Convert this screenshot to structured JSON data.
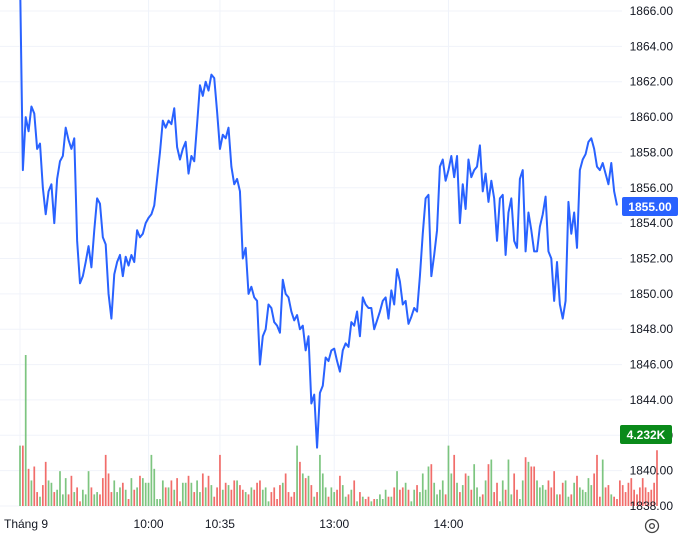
{
  "chart_data": {
    "type": "line",
    "y_axis": {
      "side": "right",
      "min": 1838,
      "max": 1866,
      "ticks": [
        1838,
        1840,
        1842,
        1844,
        1846,
        1848,
        1850,
        1852,
        1854,
        1856,
        1858,
        1860,
        1862,
        1864,
        1866
      ],
      "tick_labels": [
        "1838.00",
        "1840.00",
        "1842.00",
        "1844.00",
        "1846.00",
        "1848.00",
        "1850.00",
        "1852.00",
        "1854.00",
        "1856.00",
        "1858.00",
        "1860.00",
        "1862.00",
        "1864.00",
        "1866.00"
      ]
    },
    "x_axis": {
      "ticks": [
        {
          "label": "Tháng 9",
          "index": 0
        },
        {
          "label": "10:00",
          "index": 45
        },
        {
          "label": "10:35",
          "index": 70
        },
        {
          "label": "13:00",
          "index": 110
        },
        {
          "label": "14:00",
          "index": 150
        }
      ]
    },
    "grid": true,
    "series": [
      {
        "kind": "price",
        "color": "#2962ff",
        "values": [
          1868.0,
          1857.0,
          1860.0,
          1859.2,
          1860.6,
          1860.2,
          1858.2,
          1858.5,
          1856.0,
          1854.5,
          1855.8,
          1856.2,
          1854.0,
          1856.5,
          1857.5,
          1857.8,
          1859.4,
          1858.7,
          1858.2,
          1858.8,
          1853.0,
          1850.6,
          1851.0,
          1851.8,
          1852.7,
          1851.5,
          1853.6,
          1855.4,
          1855.1,
          1853.2,
          1852.8,
          1850.0,
          1848.6,
          1851.1,
          1851.8,
          1852.2,
          1851.0,
          1852.1,
          1851.6,
          1852.2,
          1851.8,
          1853.6,
          1853.2,
          1853.4,
          1854.0,
          1854.3,
          1854.5,
          1855.0,
          1856.5,
          1858.0,
          1859.8,
          1859.4,
          1859.8,
          1859.6,
          1860.5,
          1858.3,
          1857.6,
          1858.2,
          1858.6,
          1856.8,
          1857.8,
          1857.5,
          1859.6,
          1861.8,
          1861.2,
          1862.0,
          1861.5,
          1862.4,
          1862.2,
          1860.3,
          1858.2,
          1859.0,
          1858.8,
          1859.4,
          1857.2,
          1856.2,
          1856.5,
          1855.8,
          1852.0,
          1852.6,
          1850.0,
          1850.4,
          1849.8,
          1849.6,
          1846.0,
          1847.6,
          1848.0,
          1849.4,
          1849.2,
          1848.4,
          1848.2,
          1847.8,
          1850.8,
          1850.0,
          1849.8,
          1849.0,
          1848.5,
          1848.8,
          1848.0,
          1848.2,
          1846.8,
          1847.6,
          1843.8,
          1844.3,
          1841.3,
          1844.4,
          1844.8,
          1846.4,
          1846.2,
          1846.8,
          1846.9,
          1846.2,
          1845.6,
          1846.8,
          1847.2,
          1847.0,
          1848.4,
          1848.2,
          1849.0,
          1847.6,
          1849.8,
          1849.4,
          1849.2,
          1849.2,
          1848.0,
          1848.5,
          1849.0,
          1849.6,
          1849.8,
          1848.6,
          1850.2,
          1849.4,
          1851.4,
          1850.7,
          1849.4,
          1849.6,
          1848.3,
          1848.7,
          1849.2,
          1849.0,
          1851.0,
          1853.4,
          1855.4,
          1855.6,
          1851.0,
          1852.2,
          1853.6,
          1857.2,
          1857.6,
          1856.4,
          1857.0,
          1857.8,
          1856.6,
          1857.8,
          1854.0,
          1856.2,
          1854.8,
          1857.6,
          1856.6,
          1857.0,
          1857.2,
          1858.4,
          1855.8,
          1856.8,
          1855.2,
          1856.4,
          1855.4,
          1853.0,
          1855.4,
          1855.6,
          1852.2,
          1854.6,
          1855.4,
          1853.0,
          1852.6,
          1856.5,
          1857.0,
          1852.4,
          1854.6,
          1853.6,
          1852.4,
          1852.4,
          1853.8,
          1854.5,
          1855.5,
          1852.4,
          1852.0,
          1849.6,
          1851.8,
          1849.4,
          1848.6,
          1849.6,
          1855.2,
          1853.4,
          1854.6,
          1852.6,
          1857.0,
          1857.6,
          1857.9,
          1858.6,
          1858.8,
          1858.2,
          1857.2,
          1857.0,
          1857.4,
          1856.8,
          1856.2,
          1857.4,
          1855.8,
          1855.0
        ]
      },
      {
        "kind": "volume",
        "color_up": "#66bb6a",
        "color_down": "#ef5350",
        "scale_max": 6.5,
        "values": [
          2.6,
          2.6,
          6.5,
          1.6,
          1.1,
          1.7,
          0.6,
          0.4,
          0.9,
          1.9,
          1.1,
          1.0,
          0.6,
          0.7,
          1.5,
          0.5,
          1.2,
          0.5,
          1.3,
          0.6,
          0.8,
          0.2,
          0.7,
          0.5,
          1.5,
          0.8,
          0.5,
          0.6,
          0.5,
          1.2,
          2.2,
          1.4,
          0.6,
          1.1,
          0.6,
          0.8,
          1.0,
          0.7,
          0.3,
          1.2,
          0.7,
          0.8,
          1.3,
          1.2,
          1.0,
          1.0,
          2.2,
          1.6,
          0.3,
          0.3,
          1.1,
          0.8,
          0.8,
          1.1,
          0.7,
          1.2,
          0.2,
          1.0,
          1.0,
          1.3,
          1.0,
          0.6,
          1.1,
          0.6,
          1.4,
          0.8,
          1.3,
          0.9,
          0.4,
          0.8,
          2.2,
          0.7,
          1.0,
          0.9,
          0.7,
          1.1,
          1.1,
          0.9,
          0.7,
          0.6,
          0.5,
          0.8,
          0.7,
          1.0,
          1.1,
          0.7,
          0.8,
          0.2,
          0.6,
          0.8,
          0.3,
          0.9,
          1.0,
          1.4,
          0.6,
          0.4,
          0.6,
          2.6,
          1.9,
          1.4,
          1.2,
          1.3,
          0.9,
          0.4,
          0.6,
          2.2,
          1.4,
          0.8,
          0.4,
          0.8,
          0.6,
          0.7,
          1.3,
          0.9,
          0.4,
          0.5,
          0.7,
          1.1,
          0.2,
          0.6,
          0.4,
          0.3,
          0.4,
          0.2,
          0.3,
          0.3,
          0.5,
          0.3,
          0.7,
          0.4,
          0.4,
          0.8,
          1.5,
          0.7,
          0.8,
          1.0,
          0.7,
          0.2,
          0.7,
          0.9,
          0.6,
          1.4,
          0.7,
          1.7,
          1.8,
          1.0,
          0.5,
          0.7,
          1.1,
          0.5,
          2.6,
          1.4,
          2.2,
          1.0,
          0.6,
          0.9,
          1.4,
          1.3,
          0.7,
          1.8,
          0.8,
          0.4,
          0.5,
          1.1,
          1.8,
          2.0,
          0.6,
          1.0,
          0.2,
          1.1,
          0.7,
          2.0,
          0.5,
          1.4,
          0.7,
          0.3,
          1.1,
          2.1,
          1.9,
          1.7,
          1.7,
          1.1,
          0.8,
          0.9,
          0.7,
          1.1,
          0.8,
          1.5,
          0.5,
          0.5,
          1.0,
          1.1,
          0.4,
          0.5,
          1.0,
          1.3,
          0.8,
          0.7,
          0.6,
          1.2,
          0.9,
          1.4,
          2.2,
          0.4,
          2.0,
          0.8,
          0.9,
          0.5,
          0.4,
          0.3,
          1.1,
          0.9,
          0.6,
          1.0,
          1.2,
          0.7,
          0.5,
          0.8,
          1.2,
          0.8,
          0.6,
          0.7,
          1.0,
          2.4
        ]
      }
    ],
    "last_price_label": "1855.00",
    "last_price_color": "#2962ff",
    "last_volume_label": "4.232K",
    "last_volume_color": "#0a8a1a"
  },
  "settings_icon": "settings-icon"
}
